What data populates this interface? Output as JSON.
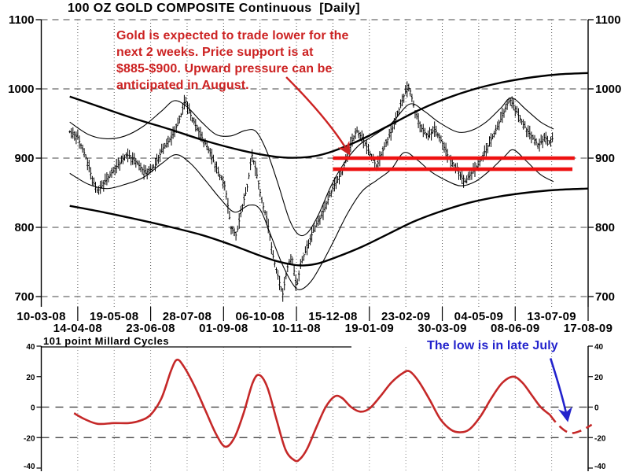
{
  "window": {
    "background": "#ffffff"
  },
  "colors": {
    "black": "#000000",
    "grid": "#555555",
    "grid_light": "#888888",
    "support_red": "#ee1111",
    "annotation_red": "#cc2222",
    "cycle_red": "#c52828",
    "annotation_blue": "#2222cc"
  },
  "chart_data": [
    {
      "type": "candlestick",
      "title": "100 OZ GOLD COMPOSITE Continuous  [Daily]",
      "ylabel": "",
      "xlabel": "",
      "ylim": [
        700,
        1100
      ],
      "yticks": [
        1100,
        1000,
        900,
        800,
        700
      ],
      "grid": "on",
      "x_labels": [
        "10-03-08",
        "14-04-08",
        "19-05-08",
        "23-06-08",
        "28-07-08",
        "01-09-08",
        "06-10-08",
        "10-11-08",
        "15-12-08",
        "19-01-09",
        "23-02-09",
        "30-03-09",
        "04-05-09",
        "08-06-09",
        "13-07-09",
        "17-08-09"
      ],
      "annotation": {
        "text": "Gold is expected to trade lower for the\nnext 2 weeks.  Price support is at\n$885-$900.  Upward pressure can be\nanticipated in August."
      },
      "support_lines": [
        {
          "value": 900,
          "t_start": 8.0,
          "t_end": 14.63
        },
        {
          "value": 884,
          "t_start": 8.0,
          "t_end": 14.57
        }
      ],
      "arrow": {
        "from_t": 6.72,
        "from_price": 1017,
        "to_t": 8.44,
        "to_price": 907
      },
      "bars": {
        "count": 300,
        "t_start": 0.78,
        "t_end": 14.02
      },
      "price_path": [
        [
          0.78,
          938
        ],
        [
          1.0,
          930
        ],
        [
          1.2,
          905
        ],
        [
          1.45,
          862
        ],
        [
          1.55,
          852
        ],
        [
          1.8,
          870
        ],
        [
          2.1,
          890
        ],
        [
          2.35,
          905
        ],
        [
          2.6,
          895
        ],
        [
          2.85,
          878
        ],
        [
          3.1,
          888
        ],
        [
          3.35,
          915
        ],
        [
          3.6,
          932
        ],
        [
          3.82,
          960
        ],
        [
          3.95,
          985
        ],
        [
          4.1,
          962
        ],
        [
          4.35,
          935
        ],
        [
          4.6,
          912
        ],
        [
          4.85,
          880
        ],
        [
          5.05,
          858
        ],
        [
          5.2,
          800
        ],
        [
          5.35,
          788
        ],
        [
          5.5,
          828
        ],
        [
          5.65,
          858
        ],
        [
          5.78,
          905
        ],
        [
          5.9,
          880
        ],
        [
          6.05,
          838
        ],
        [
          6.2,
          810
        ],
        [
          6.35,
          760
        ],
        [
          6.5,
          728
        ],
        [
          6.62,
          702
        ],
        [
          6.75,
          742
        ],
        [
          6.88,
          758
        ],
        [
          7.0,
          712
        ],
        [
          7.12,
          748
        ],
        [
          7.3,
          772
        ],
        [
          7.5,
          800
        ],
        [
          7.7,
          818
        ],
        [
          7.9,
          845
        ],
        [
          8.05,
          862
        ],
        [
          8.25,
          880
        ],
        [
          8.5,
          922
        ],
        [
          8.65,
          940
        ],
        [
          8.85,
          925
        ],
        [
          9.0,
          908
        ],
        [
          9.2,
          888
        ],
        [
          9.4,
          915
        ],
        [
          9.6,
          938
        ],
        [
          9.8,
          968
        ],
        [
          10.0,
          998
        ],
        [
          10.1,
          1002
        ],
        [
          10.25,
          968
        ],
        [
          10.4,
          945
        ],
        [
          10.6,
          932
        ],
        [
          10.8,
          942
        ],
        [
          11.0,
          922
        ],
        [
          11.2,
          898
        ],
        [
          11.45,
          880
        ],
        [
          11.6,
          865
        ],
        [
          11.8,
          878
        ],
        [
          12.0,
          892
        ],
        [
          12.2,
          912
        ],
        [
          12.45,
          938
        ],
        [
          12.65,
          962
        ],
        [
          12.85,
          985
        ],
        [
          13.0,
          972
        ],
        [
          13.15,
          955
        ],
        [
          13.3,
          942
        ],
        [
          13.5,
          928
        ],
        [
          13.65,
          918
        ],
        [
          13.8,
          930
        ],
        [
          13.95,
          922
        ],
        [
          14.02,
          928
        ]
      ],
      "envelope_upper": [
        [
          0.78,
          989
        ],
        [
          1.5,
          976
        ],
        [
          2.5,
          958
        ],
        [
          3.5,
          942
        ],
        [
          4.5,
          925
        ],
        [
          5.5,
          911
        ],
        [
          6.3,
          903
        ],
        [
          6.9,
          900.5
        ],
        [
          7.5,
          903
        ],
        [
          8.0,
          910
        ],
        [
          8.7,
          925
        ],
        [
          9.5,
          946
        ],
        [
          10.3,
          968
        ],
        [
          11.1,
          986
        ],
        [
          11.9,
          1000
        ],
        [
          12.7,
          1010
        ],
        [
          13.5,
          1017
        ],
        [
          14.2,
          1021
        ],
        [
          15.0,
          1023
        ]
      ],
      "envelope_lower": [
        [
          0.78,
          831
        ],
        [
          1.6,
          823
        ],
        [
          2.5,
          813
        ],
        [
          3.5,
          801
        ],
        [
          4.4,
          789
        ],
        [
          5.2,
          775
        ],
        [
          5.9,
          761
        ],
        [
          6.4,
          752
        ],
        [
          6.9,
          746
        ],
        [
          7.2,
          745
        ],
        [
          7.6,
          748
        ],
        [
          8.1,
          757
        ],
        [
          8.8,
          772
        ],
        [
          9.5,
          790
        ],
        [
          10.2,
          808
        ],
        [
          10.9,
          822
        ],
        [
          11.7,
          835
        ],
        [
          12.5,
          844
        ],
        [
          13.3,
          850
        ],
        [
          14.1,
          854
        ],
        [
          15.0,
          856
        ]
      ],
      "band_upper": [
        [
          0.78,
          952
        ],
        [
          1.3,
          934
        ],
        [
          1.8,
          928
        ],
        [
          2.3,
          932
        ],
        [
          2.8,
          946
        ],
        [
          3.3,
          968
        ],
        [
          3.65,
          983
        ],
        [
          4.0,
          974
        ],
        [
          4.4,
          952
        ],
        [
          4.8,
          934
        ],
        [
          5.2,
          932
        ],
        [
          5.6,
          940
        ],
        [
          5.9,
          938
        ],
        [
          6.2,
          908
        ],
        [
          6.5,
          862
        ],
        [
          6.8,
          812
        ],
        [
          7.05,
          790
        ],
        [
          7.3,
          792
        ],
        [
          7.6,
          818
        ],
        [
          7.95,
          860
        ],
        [
          8.3,
          892
        ],
        [
          8.7,
          918
        ],
        [
          9.1,
          932
        ],
        [
          9.6,
          950
        ],
        [
          10.1,
          978
        ],
        [
          10.5,
          968
        ],
        [
          10.9,
          952
        ],
        [
          11.4,
          938
        ],
        [
          11.8,
          940
        ],
        [
          12.2,
          952
        ],
        [
          12.6,
          972
        ],
        [
          12.9,
          987
        ],
        [
          13.3,
          970
        ],
        [
          13.7,
          952
        ],
        [
          14.05,
          942
        ]
      ],
      "band_lower": [
        [
          0.78,
          878
        ],
        [
          1.3,
          862
        ],
        [
          1.8,
          856
        ],
        [
          2.3,
          862
        ],
        [
          2.8,
          872
        ],
        [
          3.3,
          892
        ],
        [
          3.7,
          905
        ],
        [
          4.1,
          892
        ],
        [
          4.5,
          868
        ],
        [
          4.9,
          842
        ],
        [
          5.3,
          822
        ],
        [
          5.7,
          832
        ],
        [
          6.0,
          826
        ],
        [
          6.3,
          788
        ],
        [
          6.6,
          748
        ],
        [
          6.9,
          718
        ],
        [
          7.1,
          710
        ],
        [
          7.4,
          722
        ],
        [
          7.7,
          748
        ],
        [
          8.0,
          778
        ],
        [
          8.4,
          820
        ],
        [
          8.8,
          852
        ],
        [
          9.2,
          868
        ],
        [
          9.6,
          884
        ],
        [
          9.95,
          908
        ],
        [
          10.3,
          898
        ],
        [
          10.7,
          880
        ],
        [
          11.1,
          868
        ],
        [
          11.5,
          860
        ],
        [
          11.9,
          866
        ],
        [
          12.3,
          882
        ],
        [
          12.7,
          902
        ],
        [
          12.95,
          912
        ],
        [
          13.3,
          896
        ],
        [
          13.7,
          876
        ],
        [
          14.05,
          866
        ]
      ]
    },
    {
      "type": "line",
      "title": "101 point Millard Cycles",
      "ylim": [
        -40,
        40
      ],
      "yticks": [
        40,
        20,
        0,
        -20,
        -40
      ],
      "dashed_gridlines": [
        0,
        -20
      ],
      "annotation": {
        "text": "The low is in late July"
      },
      "arrow": {
        "points": [
          [
            13.97,
            32
          ],
          [
            14.33,
            5
          ],
          [
            14.43,
            -8
          ]
        ]
      },
      "cycle_solid": [
        [
          0.9,
          -4
        ],
        [
          1.2,
          -8
        ],
        [
          1.55,
          -11
        ],
        [
          2.0,
          -10.5
        ],
        [
          2.4,
          -10.5
        ],
        [
          2.7,
          -9
        ],
        [
          3.0,
          -5
        ],
        [
          3.3,
          6
        ],
        [
          3.56,
          24
        ],
        [
          3.72,
          31
        ],
        [
          3.9,
          27
        ],
        [
          4.2,
          14
        ],
        [
          4.5,
          -2
        ],
        [
          4.8,
          -18
        ],
        [
          5.05,
          -26
        ],
        [
          5.3,
          -20
        ],
        [
          5.55,
          -4
        ],
        [
          5.8,
          16
        ],
        [
          5.98,
          21
        ],
        [
          6.2,
          13
        ],
        [
          6.45,
          -8
        ],
        [
          6.7,
          -28
        ],
        [
          6.95,
          -35
        ],
        [
          7.1,
          -34
        ],
        [
          7.3,
          -27
        ],
        [
          7.55,
          -13
        ],
        [
          7.8,
          0
        ],
        [
          8.05,
          7
        ],
        [
          8.25,
          6
        ],
        [
          8.5,
          0
        ],
        [
          8.75,
          -3
        ],
        [
          9.0,
          -1
        ],
        [
          9.3,
          7
        ],
        [
          9.6,
          16
        ],
        [
          9.9,
          22
        ],
        [
          10.1,
          23.5
        ],
        [
          10.35,
          17
        ],
        [
          10.65,
          5
        ],
        [
          10.95,
          -8
        ],
        [
          11.25,
          -15
        ],
        [
          11.5,
          -16.5
        ],
        [
          11.75,
          -14.5
        ],
        [
          12.05,
          -6
        ],
        [
          12.35,
          6
        ],
        [
          12.65,
          16
        ],
        [
          12.95,
          20
        ],
        [
          13.2,
          16
        ],
        [
          13.45,
          8
        ],
        [
          13.7,
          0
        ],
        [
          13.95,
          -5
        ]
      ],
      "cycle_dashed": [
        [
          13.95,
          -5
        ],
        [
          14.15,
          -11
        ],
        [
          14.4,
          -16
        ],
        [
          14.6,
          -17
        ],
        [
          14.8,
          -15.5
        ],
        [
          15.0,
          -13
        ],
        [
          15.1,
          -11.5
        ]
      ]
    }
  ]
}
